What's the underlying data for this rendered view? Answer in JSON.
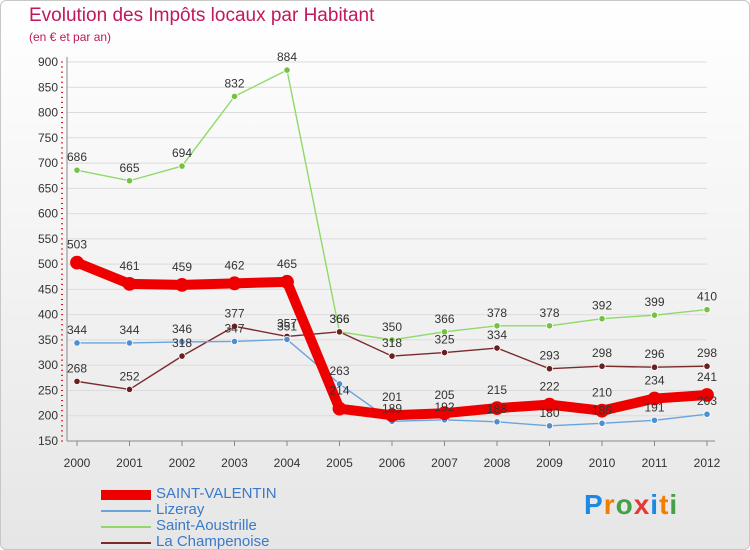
{
  "header": {
    "title": "Evolution des Impôts locaux par Habitant",
    "subtitle": "(en € et par an)"
  },
  "brand": {
    "name": "Proxiti",
    "letters": [
      "P",
      "r",
      "o",
      "x",
      "i",
      "t",
      "i"
    ]
  },
  "chart_data": {
    "type": "line",
    "title": "Evolution des Impôts locaux par Habitant",
    "subtitle": "(en € et par an)",
    "xlabel": "",
    "ylabel": "",
    "x": [
      "2000",
      "2001",
      "2002",
      "2003",
      "2004",
      "2005",
      "2006",
      "2007",
      "2008",
      "2009",
      "2010",
      "2011",
      "2012"
    ],
    "ylim": [
      150,
      900
    ],
    "yticks": [
      150,
      200,
      250,
      300,
      350,
      400,
      450,
      500,
      550,
      600,
      650,
      700,
      750,
      800,
      850,
      900
    ],
    "grid": "horizontal",
    "legend_position": "bottom-left",
    "series": [
      {
        "name": "Saint-Aoustrille",
        "color": "#8fd96a",
        "marker": "#76c043",
        "thick": false,
        "values": [
          686,
          665,
          694,
          832,
          884,
          366,
          350,
          366,
          378,
          378,
          392,
          399,
          410
        ]
      },
      {
        "name": "La Champenoise",
        "color": "#7b2a2a",
        "marker": "#6b1f1f",
        "thick": false,
        "values": [
          268,
          252,
          318,
          377,
          357,
          366,
          318,
          325,
          334,
          293,
          298,
          296,
          298
        ]
      },
      {
        "name": "Lizeray",
        "color": "#6aa4dc",
        "marker": "#4f8fd0",
        "thick": false,
        "values": [
          344,
          344,
          346,
          347,
          351,
          263,
          189,
          192,
          188,
          180,
          185,
          191,
          203
        ]
      },
      {
        "name": "SAINT-VALENTIN",
        "color": "#ee0000",
        "marker": "#ee0000",
        "thick": true,
        "values": [
          503,
          461,
          459,
          462,
          465,
          214,
          201,
          205,
          215,
          222,
          210,
          234,
          241
        ]
      }
    ],
    "legend": [
      "SAINT-VALENTIN",
      "Lizeray",
      "Saint-Aoustrille",
      "La Champenoise"
    ]
  }
}
